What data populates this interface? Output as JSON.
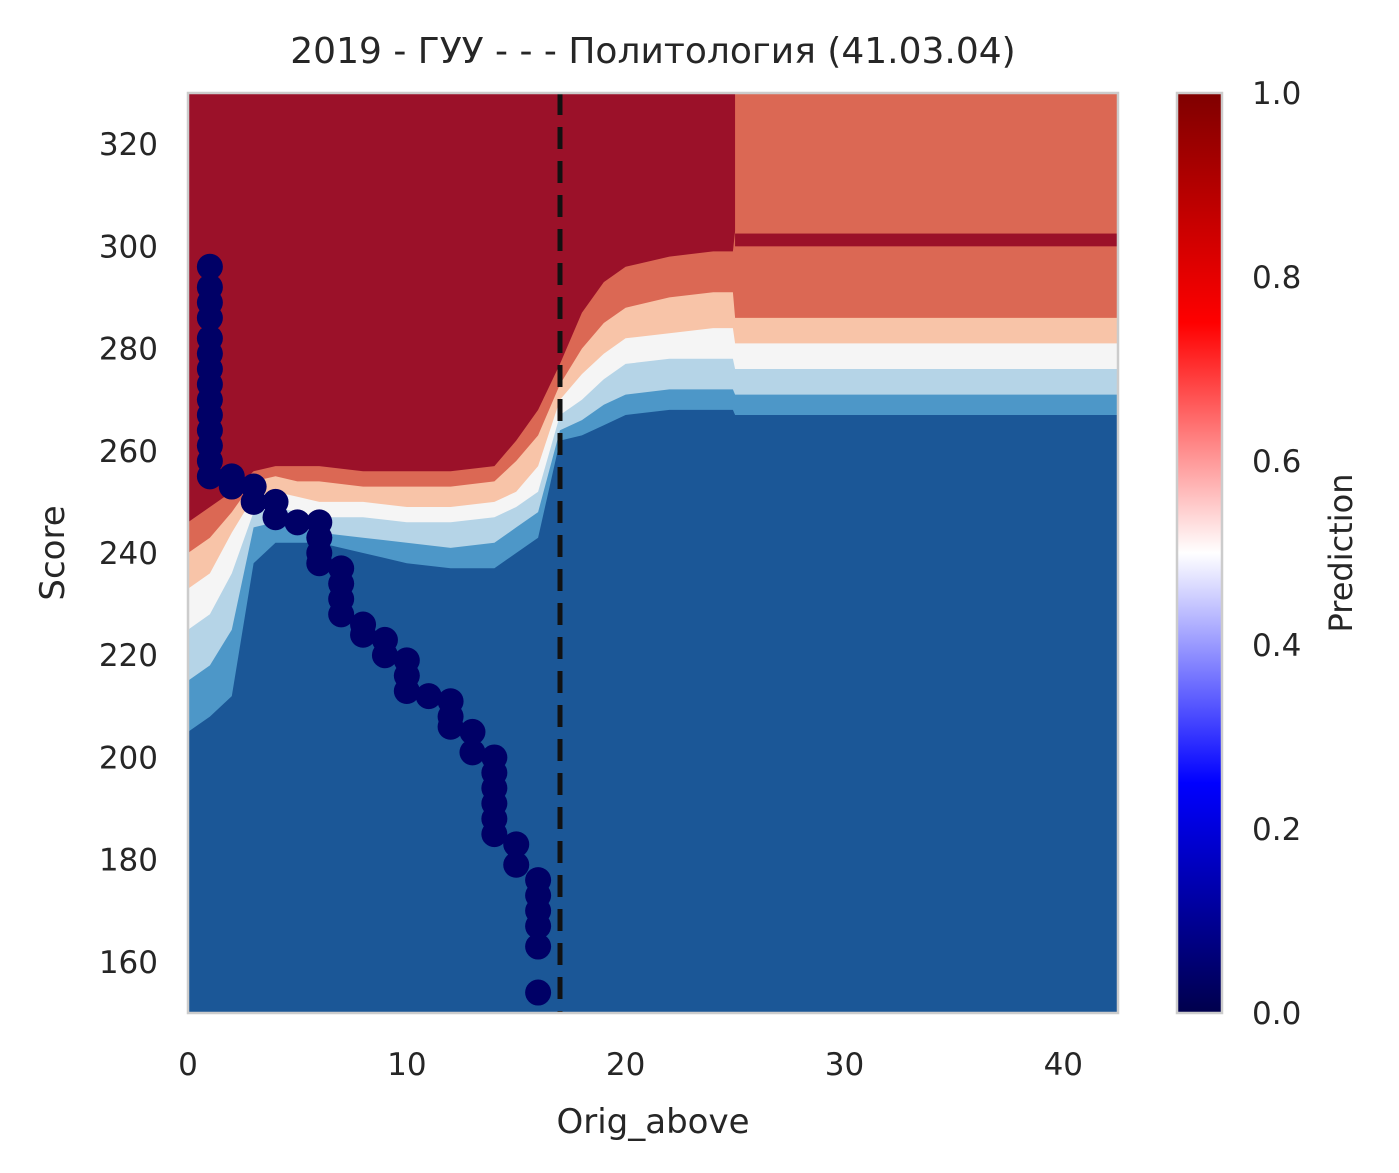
{
  "chart_data": {
    "type": "heatmap",
    "title": "2019 - ГУУ - - - Политология (41.03.04)",
    "xlabel": "Orig_above",
    "ylabel": "Score",
    "xlim": [
      0,
      42.5
    ],
    "ylim": [
      150,
      330
    ],
    "xticks": [
      "0",
      "10",
      "20",
      "30",
      "40"
    ],
    "yticks": [
      "160",
      "180",
      "200",
      "220",
      "240",
      "260",
      "280",
      "300",
      "320"
    ],
    "threshold_line_x": 17,
    "colorbar": {
      "label": "Prediction",
      "ticks": [
        "0.0",
        "0.2",
        "0.4",
        "0.6",
        "0.8",
        "1.0"
      ],
      "colormap": "seismic"
    },
    "contour_level_colors": [
      "#1b5797",
      "#4d97c8",
      "#b5d4e7",
      "#f5f5f5",
      "#f8c4a8",
      "#db6854",
      "#9b1129"
    ],
    "contour_boundaries": {
      "x": [
        0,
        1,
        2,
        3,
        4,
        5,
        6,
        8,
        10,
        12,
        14,
        15,
        16,
        17,
        18,
        19,
        20,
        22,
        24,
        24.9,
        25,
        30,
        35,
        42.5
      ],
      "b1": [
        205,
        208,
        212,
        238,
        242,
        242,
        242,
        240,
        238,
        237,
        237,
        240,
        243,
        262,
        263,
        265,
        267,
        268,
        268,
        268,
        267,
        267,
        267,
        267
      ],
      "b2": [
        215,
        218,
        225,
        245,
        246,
        245,
        244,
        243,
        242,
        241,
        242,
        245,
        248,
        264,
        266,
        269,
        271,
        272,
        272,
        272,
        271,
        271,
        271,
        271
      ],
      "b3": [
        225,
        228,
        236,
        248,
        249,
        248,
        247,
        247,
        246,
        246,
        247,
        249,
        252,
        267,
        270,
        274,
        277,
        278,
        278,
        278,
        276,
        276,
        276,
        276
      ],
      "b4": [
        233,
        236,
        244,
        251,
        252,
        251,
        250,
        250,
        249,
        249,
        250,
        252,
        257,
        270,
        275,
        279,
        282,
        283,
        284,
        284,
        281,
        281,
        281,
        281
      ],
      "b5": [
        240,
        243,
        248,
        254,
        255,
        254,
        254,
        253,
        253,
        253,
        254,
        258,
        263,
        273,
        280,
        285,
        288,
        290,
        291,
        291,
        286,
        286,
        286,
        286
      ],
      "b6": [
        246,
        249,
        252,
        256,
        257,
        257,
        257,
        256,
        256,
        256,
        257,
        262,
        268,
        277,
        287,
        293,
        296,
        298,
        299,
        299,
        303,
        303,
        303,
        303
      ]
    },
    "upper_right_region": {
      "x_from": 25,
      "y_from": 302,
      "level": 5
    },
    "upper_band": {
      "x_from": 25,
      "y": [
        300,
        302.5
      ],
      "level": 6
    },
    "scatter": {
      "color": "#000066",
      "points": [
        [
          1,
          296
        ],
        [
          1,
          292
        ],
        [
          1,
          289
        ],
        [
          1,
          286
        ],
        [
          1,
          282
        ],
        [
          1,
          279
        ],
        [
          1,
          276
        ],
        [
          1,
          273
        ],
        [
          1,
          270
        ],
        [
          1,
          267
        ],
        [
          1,
          264
        ],
        [
          1,
          261
        ],
        [
          1,
          258
        ],
        [
          1,
          255
        ],
        [
          2,
          255
        ],
        [
          2,
          253
        ],
        [
          3,
          253
        ],
        [
          3,
          250
        ],
        [
          4,
          250
        ],
        [
          4,
          247
        ],
        [
          5,
          246
        ],
        [
          6,
          246
        ],
        [
          6,
          243
        ],
        [
          6,
          240
        ],
        [
          6,
          238
        ],
        [
          7,
          237
        ],
        [
          7,
          234
        ],
        [
          7,
          231
        ],
        [
          7,
          228
        ],
        [
          8,
          226
        ],
        [
          8,
          224
        ],
        [
          9,
          223
        ],
        [
          9,
          220
        ],
        [
          10,
          219
        ],
        [
          10,
          216
        ],
        [
          10,
          213
        ],
        [
          11,
          212
        ],
        [
          12,
          211
        ],
        [
          12,
          208
        ],
        [
          12,
          206
        ],
        [
          13,
          205
        ],
        [
          13,
          201
        ],
        [
          14,
          200
        ],
        [
          14,
          197
        ],
        [
          14,
          194
        ],
        [
          14,
          191
        ],
        [
          14,
          188
        ],
        [
          14,
          185
        ],
        [
          15,
          183
        ],
        [
          15,
          179
        ],
        [
          16,
          176
        ],
        [
          16,
          173
        ],
        [
          16,
          170
        ],
        [
          16,
          167
        ],
        [
          16,
          163
        ],
        [
          16,
          154
        ]
      ]
    }
  }
}
